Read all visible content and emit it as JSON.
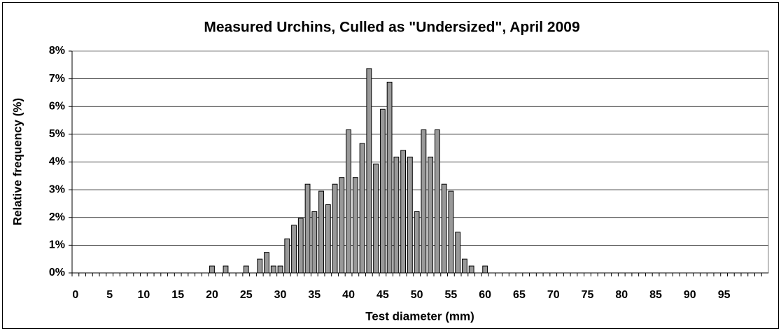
{
  "chart_data": {
    "type": "bar",
    "title": "Measured Urchins, Culled as \"Undersized\", April 2009",
    "xlabel": "Test diameter (mm)",
    "ylabel": "Relative frequency (%)",
    "categories": [
      0,
      null,
      null,
      null,
      null,
      5,
      null,
      null,
      null,
      null,
      10,
      null,
      null,
      null,
      null,
      15,
      null,
      null,
      null,
      null,
      20,
      null,
      null,
      null,
      null,
      25,
      null,
      null,
      null,
      null,
      30,
      null,
      null,
      null,
      null,
      35,
      null,
      null,
      null,
      null,
      40,
      null,
      null,
      null,
      null,
      45,
      null,
      null,
      null,
      null,
      50,
      null,
      null,
      null,
      null,
      55,
      null,
      null,
      null,
      null,
      60,
      null,
      null,
      null,
      null,
      65,
      null,
      null,
      null,
      null,
      70,
      null,
      null,
      null,
      null,
      75,
      null,
      null,
      null,
      null,
      80,
      null,
      null,
      null,
      null,
      85,
      null,
      null,
      null,
      null,
      90,
      null,
      null,
      null,
      null,
      95,
      null,
      null,
      null,
      null,
      null,
      null
    ],
    "values": [
      0,
      0,
      0,
      0,
      0,
      0,
      0,
      0,
      0,
      0,
      0,
      0,
      0,
      0,
      0,
      0,
      0,
      0,
      0,
      0,
      0.25,
      0,
      0.25,
      0,
      0,
      0.25,
      0,
      0.5,
      0.74,
      0.25,
      0.25,
      1.23,
      1.72,
      1.97,
      3.2,
      2.21,
      2.95,
      2.46,
      3.2,
      3.44,
      5.16,
      3.44,
      4.67,
      7.37,
      3.93,
      5.9,
      6.88,
      4.18,
      4.42,
      4.18,
      2.21,
      5.16,
      4.18,
      5.16,
      3.2,
      2.95,
      1.47,
      0.5,
      0.25,
      0,
      0.25,
      0,
      0,
      0,
      0,
      0,
      0,
      0,
      0,
      0,
      0,
      0,
      0,
      0,
      0,
      0,
      0,
      0,
      0,
      0,
      0,
      0,
      0,
      0,
      0,
      0,
      0,
      0,
      0,
      0,
      0,
      0,
      0,
      0,
      0,
      0,
      0,
      0,
      0,
      0,
      0,
      0
    ],
    "color": "#999999",
    "ylim": [
      0,
      8
    ],
    "yticks": [
      {
        "value": 0,
        "label": "0%"
      },
      {
        "value": 1,
        "label": "1%"
      },
      {
        "value": 2,
        "label": "2%"
      },
      {
        "value": 3,
        "label": "3%"
      },
      {
        "value": 4,
        "label": "4%"
      },
      {
        "value": 5,
        "label": "5%"
      },
      {
        "value": 6,
        "label": "6%"
      },
      {
        "value": 7,
        "label": "7%"
      },
      {
        "value": 8,
        "label": "8%"
      }
    ],
    "grid": true
  }
}
